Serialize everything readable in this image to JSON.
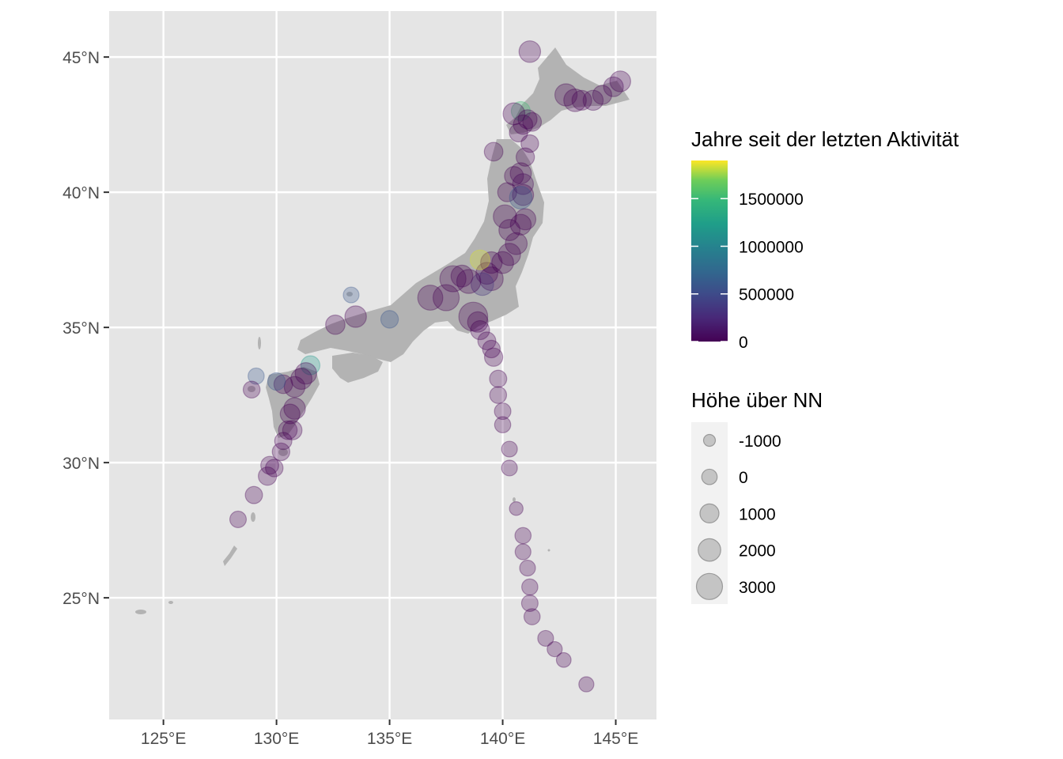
{
  "colors": {
    "panel_background": "#E5E5E5",
    "gridline": "#FFFFFF",
    "land": "#B3B3B3",
    "point_outline": "#808080",
    "axis_text": "#4D4D4D",
    "viridis_low": "#440154",
    "viridis_high": "#FDE725"
  },
  "map": {
    "x_ticks": [
      "125°E",
      "130°E",
      "135°E",
      "140°E",
      "145°E"
    ],
    "y_ticks": [
      "45°N",
      "40°N",
      "35°N",
      "30°N",
      "25°N"
    ]
  },
  "chart_data": {
    "type": "scatter",
    "projection": "lon-lat",
    "xlim": [
      122.6,
      146.8
    ],
    "ylim": [
      20.5,
      46.7
    ],
    "x_tick_values": [
      125,
      130,
      135,
      140,
      145
    ],
    "y_tick_values": [
      45,
      40,
      35,
      30,
      25
    ],
    "grid": true,
    "legend_position": "right",
    "color_legend": {
      "title": "Jahre seit der letzten Aktivität",
      "labels": [
        "1500000",
        "1000000",
        "500000",
        "0"
      ],
      "values": [
        1500000,
        1000000,
        500000,
        0
      ],
      "range": [
        0,
        1900000
      ]
    },
    "size_legend": {
      "title": "Höhe über NN",
      "labels": [
        "-1000",
        "0",
        "1000",
        "2000",
        "3000"
      ],
      "values": [
        -1000,
        0,
        1000,
        2000,
        3000
      ]
    },
    "point_alpha": 0.3,
    "volcanoes_columns": [
      "lon",
      "lat",
      "elevation_m",
      "years_since_activity"
    ],
    "volcanoes": [
      [
        141.2,
        45.2,
        1721,
        0
      ],
      [
        145.2,
        44.1,
        1500,
        0
      ],
      [
        144.9,
        43.9,
        1200,
        8000
      ],
      [
        144.4,
        43.6,
        1000,
        0
      ],
      [
        144.0,
        43.4,
        1300,
        20000
      ],
      [
        143.2,
        43.4,
        2000,
        0
      ],
      [
        142.8,
        43.6,
        1900,
        0
      ],
      [
        143.5,
        43.4,
        1200,
        0
      ],
      [
        140.8,
        43.0,
        1000,
        1300000
      ],
      [
        140.5,
        42.9,
        1800,
        0
      ],
      [
        141.1,
        42.7,
        1000,
        0
      ],
      [
        141.3,
        42.6,
        900,
        0
      ],
      [
        140.9,
        42.5,
        1100,
        0
      ],
      [
        140.7,
        42.2,
        800,
        0
      ],
      [
        141.2,
        41.8,
        600,
        0
      ],
      [
        141.0,
        41.3,
        800,
        0
      ],
      [
        139.6,
        41.5,
        900,
        0
      ],
      [
        140.8,
        40.7,
        1600,
        0
      ],
      [
        140.5,
        40.6,
        1000,
        0
      ],
      [
        140.9,
        40.3,
        1500,
        30000
      ],
      [
        140.2,
        40.0,
        1000,
        0
      ],
      [
        140.9,
        39.9,
        1600,
        0
      ],
      [
        140.8,
        39.8,
        2000,
        500000
      ],
      [
        141.0,
        39.0,
        1600,
        0
      ],
      [
        140.8,
        38.8,
        1500,
        0
      ],
      [
        140.1,
        39.1,
        2200,
        0
      ],
      [
        140.3,
        38.6,
        1600,
        0
      ],
      [
        140.6,
        38.1,
        1800,
        0
      ],
      [
        140.3,
        37.7,
        1900,
        0
      ],
      [
        140.0,
        37.4,
        1800,
        0
      ],
      [
        139.5,
        37.4,
        1700,
        0
      ],
      [
        139.3,
        37.0,
        1800,
        0
      ],
      [
        139.0,
        37.5,
        1200,
        1800000
      ],
      [
        139.5,
        36.8,
        2300,
        0
      ],
      [
        139.1,
        36.6,
        2000,
        300000
      ],
      [
        138.5,
        36.7,
        2400,
        0
      ],
      [
        138.2,
        36.9,
        1800,
        0
      ],
      [
        137.8,
        36.8,
        3000,
        0
      ],
      [
        137.5,
        36.1,
        3000,
        0
      ],
      [
        136.8,
        36.1,
        2700,
        0
      ],
      [
        138.7,
        35.4,
        3776,
        0
      ],
      [
        138.9,
        35.2,
        1400,
        0
      ],
      [
        139.0,
        34.9,
        1000,
        0
      ],
      [
        139.3,
        34.5,
        700,
        0
      ],
      [
        139.5,
        34.2,
        600,
        0
      ],
      [
        139.6,
        33.9,
        800,
        0
      ],
      [
        139.8,
        33.1,
        500,
        0
      ],
      [
        139.8,
        32.5,
        400,
        0
      ],
      [
        140.0,
        31.9,
        300,
        0
      ],
      [
        140.0,
        31.4,
        200,
        0
      ],
      [
        140.3,
        30.5,
        100,
        0
      ],
      [
        140.3,
        29.8,
        100,
        0
      ],
      [
        140.6,
        28.3,
        -500,
        0
      ],
      [
        140.9,
        27.3,
        200,
        0
      ],
      [
        140.9,
        26.7,
        100,
        0
      ],
      [
        141.1,
        26.1,
        100,
        0
      ],
      [
        141.2,
        25.4,
        200,
        0
      ],
      [
        141.2,
        24.8,
        300,
        0
      ],
      [
        141.3,
        24.3,
        200,
        0
      ],
      [
        141.9,
        23.5,
        100,
        0
      ],
      [
        142.3,
        23.1,
        -100,
        0
      ],
      [
        142.7,
        22.7,
        -200,
        0
      ],
      [
        143.7,
        21.8,
        -100,
        0
      ],
      [
        135.0,
        35.3,
        600,
        500000
      ],
      [
        133.3,
        36.2,
        100,
        500000
      ],
      [
        133.5,
        35.4,
        1700,
        0
      ],
      [
        132.6,
        35.1,
        1100,
        0
      ],
      [
        131.5,
        33.6,
        1000,
        1000000
      ],
      [
        131.3,
        33.3,
        1700,
        0
      ],
      [
        131.1,
        33.1,
        1600,
        0
      ],
      [
        130.8,
        32.8,
        1500,
        0
      ],
      [
        130.3,
        32.9,
        900,
        0
      ],
      [
        130.0,
        33.0,
        600,
        500000
      ],
      [
        129.1,
        33.2,
        200,
        500000
      ],
      [
        128.9,
        32.7,
        400,
        0
      ],
      [
        130.8,
        32.0,
        1700,
        0
      ],
      [
        130.6,
        31.8,
        1200,
        0
      ],
      [
        130.7,
        31.2,
        1100,
        0
      ],
      [
        130.5,
        31.2,
        900,
        0
      ],
      [
        130.3,
        30.8,
        500,
        0
      ],
      [
        130.2,
        30.4,
        600,
        0
      ],
      [
        129.7,
        29.9,
        700,
        0
      ],
      [
        129.9,
        29.8,
        600,
        0
      ],
      [
        129.6,
        29.5,
        800,
        0
      ],
      [
        129.0,
        28.8,
        500,
        0
      ],
      [
        128.3,
        27.9,
        300,
        0
      ]
    ]
  }
}
